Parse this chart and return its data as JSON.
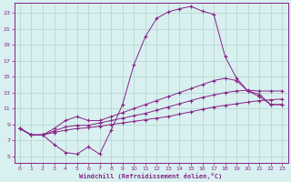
{
  "xlabel": "Windchill (Refroidissement éolien,°C)",
  "bg_color": "#d8f0f0",
  "grid_color": "#b8d8d0",
  "line_color": "#882288",
  "x_ticks": [
    0,
    1,
    2,
    3,
    4,
    5,
    6,
    7,
    8,
    9,
    10,
    11,
    12,
    13,
    14,
    15,
    16,
    17,
    18,
    19,
    20,
    21,
    22,
    23
  ],
  "y_ticks": [
    5,
    7,
    9,
    11,
    13,
    15,
    17,
    19,
    21,
    23
  ],
  "xlim": [
    -0.5,
    23.5
  ],
  "ylim": [
    4.2,
    24.2
  ],
  "curves": [
    {
      "x": [
        0,
        1,
        2,
        3,
        4,
        5,
        6,
        7,
        8,
        9,
        10,
        11,
        12,
        13,
        14,
        15,
        16,
        17,
        18,
        19,
        20,
        21,
        22,
        23
      ],
      "y": [
        8.5,
        7.7,
        7.7,
        6.5,
        5.5,
        5.3,
        6.2,
        5.3,
        8.3,
        11.5,
        16.5,
        20.0,
        22.3,
        23.1,
        23.5,
        23.8,
        23.2,
        22.8,
        17.5,
        14.8,
        13.2,
        12.5,
        11.5,
        11.5
      ]
    },
    {
      "x": [
        0,
        1,
        2,
        3,
        4,
        5,
        6,
        7,
        8,
        9,
        10,
        11,
        12,
        13,
        14,
        15,
        16,
        17,
        18,
        19,
        20,
        21,
        22,
        23
      ],
      "y": [
        8.5,
        7.7,
        7.7,
        8.5,
        9.5,
        10.0,
        9.5,
        9.5,
        10.0,
        10.5,
        11.0,
        11.5,
        12.0,
        12.5,
        13.0,
        13.5,
        14.0,
        14.5,
        14.8,
        14.5,
        13.2,
        12.8,
        11.5,
        11.5
      ]
    },
    {
      "x": [
        0,
        1,
        2,
        3,
        4,
        5,
        6,
        7,
        8,
        9,
        10,
        11,
        12,
        13,
        14,
        15,
        16,
        17,
        18,
        19,
        20,
        21,
        22,
        23
      ],
      "y": [
        8.5,
        7.7,
        7.7,
        8.2,
        8.7,
        8.9,
        8.9,
        9.2,
        9.5,
        9.8,
        10.1,
        10.4,
        10.8,
        11.2,
        11.6,
        12.0,
        12.4,
        12.7,
        13.0,
        13.2,
        13.3,
        13.2,
        13.2,
        13.2
      ]
    },
    {
      "x": [
        0,
        1,
        2,
        3,
        4,
        5,
        6,
        7,
        8,
        9,
        10,
        11,
        12,
        13,
        14,
        15,
        16,
        17,
        18,
        19,
        20,
        21,
        22,
        23
      ],
      "y": [
        8.5,
        7.7,
        7.7,
        8.0,
        8.3,
        8.5,
        8.6,
        8.8,
        9.0,
        9.2,
        9.4,
        9.6,
        9.8,
        10.0,
        10.3,
        10.6,
        10.9,
        11.2,
        11.4,
        11.6,
        11.8,
        12.0,
        12.1,
        12.2
      ]
    }
  ]
}
